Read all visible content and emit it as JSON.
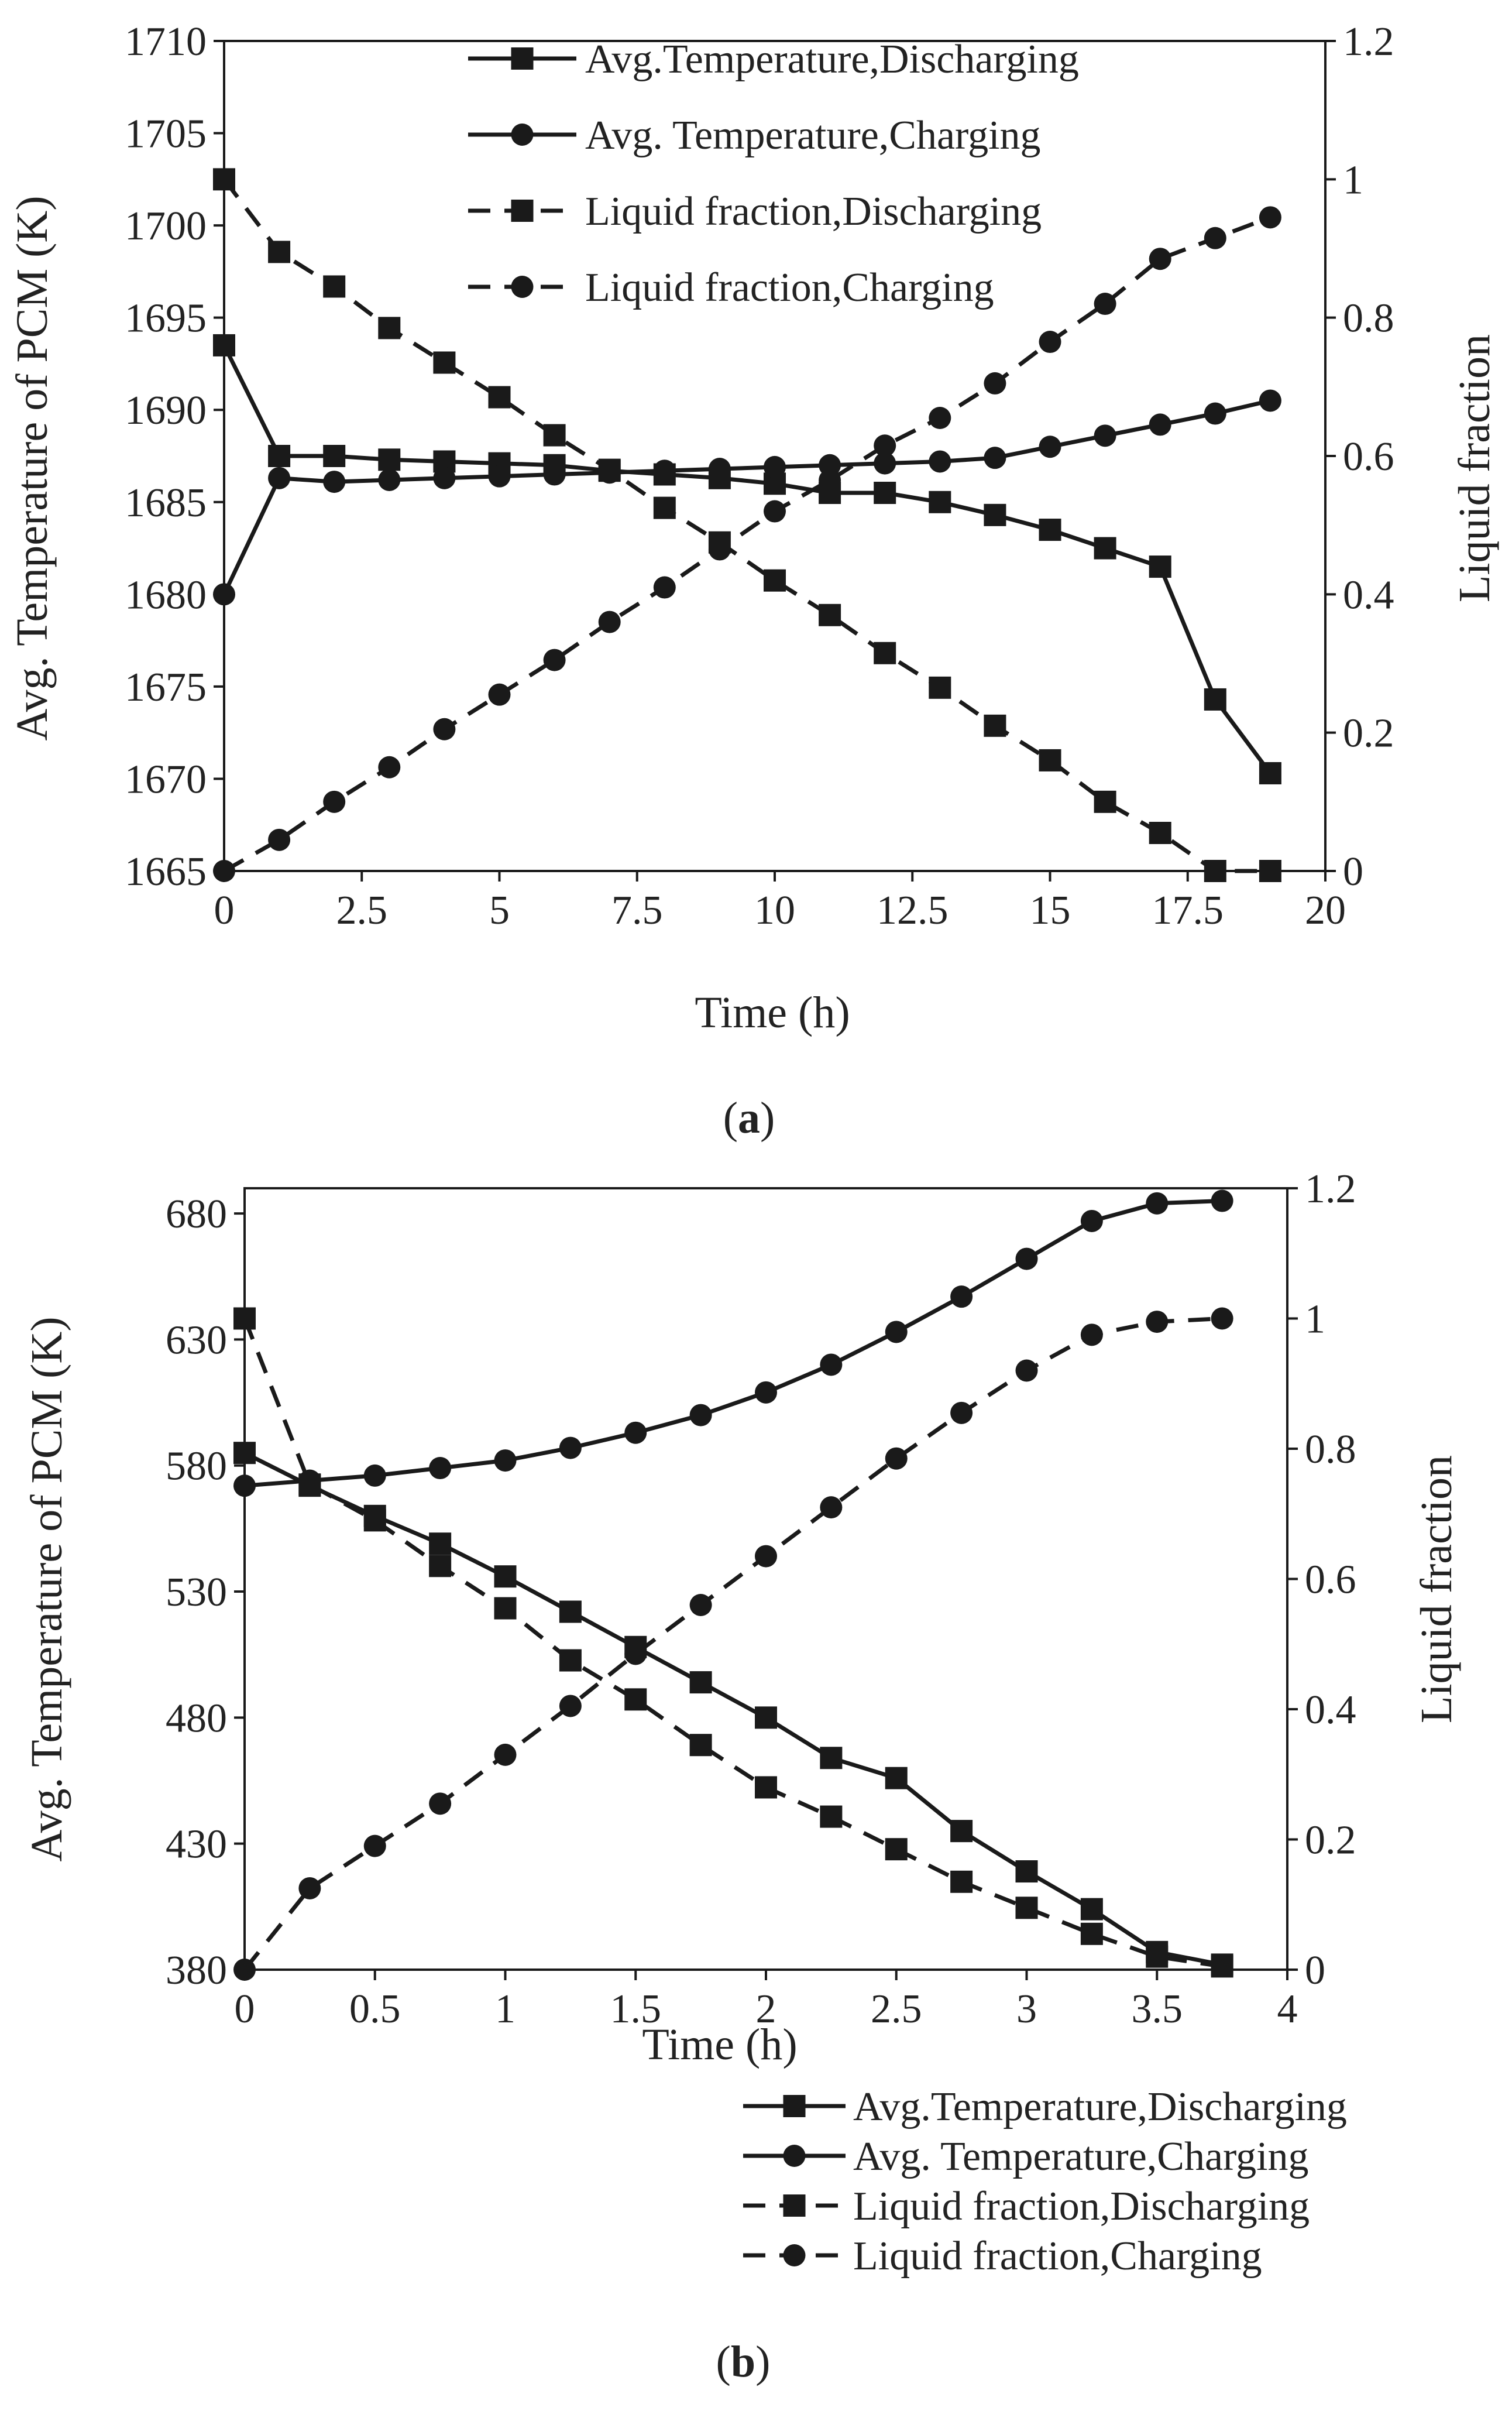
{
  "figure": {
    "caption_a": {
      "open": "(",
      "letter": "a",
      "close": ")"
    },
    "caption_b": {
      "open": "(",
      "letter": "b",
      "close": ")"
    }
  },
  "legend_labels": {
    "temp_discharging": "Avg.Temperature,Discharging",
    "temp_charging": "Avg. Temperature,Charging",
    "lf_discharging": "Liquid fraction,Discharging",
    "lf_charging": "Liquid fraction,Charging"
  },
  "chart_data": [
    {
      "id": "a",
      "type": "line",
      "xlabel": "Time  (h)",
      "ylabel": "Avg. Temperature of PCM (K)",
      "y2label": "Liquid fraction",
      "xlim": [
        0,
        20
      ],
      "ylim": [
        1665,
        1710
      ],
      "y2lim": [
        0,
        1.2
      ],
      "xticks": [
        "0",
        "2.5",
        "5",
        "7.5",
        "10",
        "12.5",
        "15",
        "17.5",
        "20"
      ],
      "yticks": [
        "1665",
        "1670",
        "1675",
        "1680",
        "1685",
        "1690",
        "1695",
        "1700",
        "1705",
        "1710"
      ],
      "y2ticks": [
        "0",
        "0.2",
        "0.4",
        "0.6",
        "0.8",
        "1",
        "1.2"
      ],
      "legend_position": "top",
      "series": [
        {
          "key": "temp_discharging",
          "name": "Avg.Temperature,Discharging",
          "axis": "left",
          "style": "solid",
          "marker": "square",
          "x": [
            0,
            1,
            2,
            3,
            4,
            5,
            6,
            7,
            8,
            9,
            10,
            11,
            12,
            13,
            14,
            15,
            16,
            17,
            18,
            19
          ],
          "y": [
            1693.5,
            1687.5,
            1687.5,
            1687.3,
            1687.2,
            1687.1,
            1687.0,
            1686.7,
            1686.5,
            1686.3,
            1686.0,
            1685.5,
            1685.5,
            1685.0,
            1684.3,
            1683.5,
            1682.5,
            1681.5,
            1674.3,
            1670.3
          ]
        },
        {
          "key": "temp_charging",
          "name": "Avg. Temperature,Charging",
          "axis": "left",
          "style": "solid",
          "marker": "circle",
          "x": [
            0,
            1,
            2,
            3,
            4,
            5,
            6,
            7,
            8,
            9,
            10,
            11,
            12,
            13,
            14,
            15,
            16,
            17,
            18,
            19
          ],
          "y": [
            1680.0,
            1686.3,
            1686.1,
            1686.2,
            1686.3,
            1686.4,
            1686.5,
            1686.6,
            1686.7,
            1686.8,
            1686.9,
            1687.0,
            1687.1,
            1687.2,
            1687.4,
            1688.0,
            1688.6,
            1689.2,
            1689.8,
            1690.5
          ]
        },
        {
          "key": "lf_discharging",
          "name": "Liquid fraction,Discharging",
          "axis": "right",
          "style": "dashed",
          "marker": "square",
          "x": [
            0,
            1,
            2,
            3,
            4,
            5,
            6,
            7,
            8,
            9,
            10,
            11,
            12,
            13,
            14,
            15,
            16,
            17,
            18,
            19
          ],
          "y": [
            1.0,
            0.895,
            0.845,
            0.785,
            0.735,
            0.685,
            0.63,
            0.58,
            0.525,
            0.475,
            0.42,
            0.37,
            0.315,
            0.265,
            0.21,
            0.16,
            0.1,
            0.055,
            0.0,
            0.0
          ]
        },
        {
          "key": "lf_charging",
          "name": "Liquid fraction,Charging",
          "axis": "right",
          "style": "dashed",
          "marker": "circle",
          "x": [
            0,
            1,
            2,
            3,
            4,
            5,
            6,
            7,
            8,
            9,
            10,
            11,
            12,
            13,
            14,
            15,
            16,
            17,
            18,
            19
          ],
          "y": [
            0.0,
            0.045,
            0.1,
            0.15,
            0.205,
            0.255,
            0.305,
            0.36,
            0.41,
            0.465,
            0.52,
            0.565,
            0.615,
            0.655,
            0.705,
            0.765,
            0.82,
            0.885,
            0.915,
            0.945
          ]
        }
      ]
    },
    {
      "id": "b",
      "type": "line",
      "xlabel": "Time (h)",
      "ylabel": "Avg. Temperature of PCM (K)",
      "y2label": "Liquid fraction",
      "xlim": [
        0,
        4
      ],
      "ylim": [
        380,
        690
      ],
      "y2lim": [
        0,
        1.2
      ],
      "xticks": [
        "0",
        "0.5",
        "1",
        "1.5",
        "2",
        "2.5",
        "3",
        "3.5",
        "4"
      ],
      "yticks": [
        "380",
        "430",
        "480",
        "530",
        "580",
        "630",
        "680"
      ],
      "y2ticks": [
        "0",
        "0.2",
        "0.4",
        "0.6",
        "0.8",
        "1",
        "1.2"
      ],
      "legend_position": "bottom-right",
      "series": [
        {
          "key": "temp_discharging",
          "name": "Avg.Temperature,Discharging",
          "axis": "left",
          "style": "solid",
          "marker": "square",
          "x": [
            0,
            0.25,
            0.5,
            0.75,
            1,
            1.25,
            1.5,
            1.75,
            2,
            2.25,
            2.5,
            2.75,
            3,
            3.25,
            3.5,
            3.75
          ],
          "y": [
            585,
            572,
            560,
            549,
            536,
            522,
            508,
            494,
            480,
            464,
            456,
            435,
            419,
            404,
            387,
            382
          ]
        },
        {
          "key": "temp_charging",
          "name": "Avg. Temperature,Charging",
          "axis": "left",
          "style": "solid",
          "marker": "circle",
          "x": [
            0,
            0.25,
            0.5,
            0.75,
            1,
            1.25,
            1.5,
            1.75,
            2,
            2.25,
            2.5,
            2.75,
            3,
            3.25,
            3.5,
            3.75
          ],
          "y": [
            572,
            574,
            576,
            579,
            582,
            587,
            593,
            600,
            609,
            620,
            633,
            647,
            662,
            677,
            684,
            685
          ]
        },
        {
          "key": "lf_discharging",
          "name": "Liquid fraction,Discharging",
          "axis": "right",
          "style": "dashed",
          "marker": "square",
          "x": [
            0,
            0.25,
            0.5,
            0.75,
            1,
            1.25,
            1.5,
            1.75,
            2,
            2.25,
            2.5,
            2.75,
            3,
            3.25,
            3.5,
            3.75
          ],
          "y": [
            1.0,
            0.745,
            0.69,
            0.62,
            0.555,
            0.475,
            0.415,
            0.345,
            0.28,
            0.235,
            0.185,
            0.135,
            0.095,
            0.055,
            0.02,
            0.005
          ]
        },
        {
          "key": "lf_charging",
          "name": "Liquid fraction,Charging",
          "axis": "right",
          "style": "dashed",
          "marker": "circle",
          "x": [
            0,
            0.25,
            0.5,
            0.75,
            1,
            1.25,
            1.5,
            1.75,
            2,
            2.25,
            2.5,
            2.75,
            3,
            3.25,
            3.5,
            3.75
          ],
          "y": [
            0.0,
            0.125,
            0.19,
            0.255,
            0.33,
            0.405,
            0.485,
            0.56,
            0.635,
            0.71,
            0.785,
            0.855,
            0.92,
            0.975,
            0.995,
            1.0
          ]
        }
      ]
    }
  ]
}
